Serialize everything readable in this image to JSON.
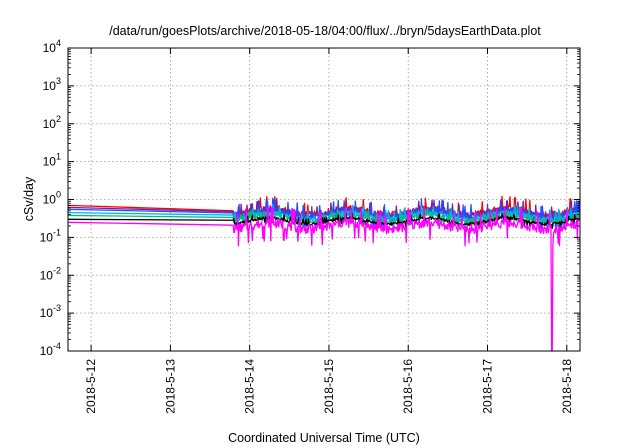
{
  "chart_data": {
    "type": "line",
    "title": "/data/run/goesPlots/archive/2018-05-18/04:00/flux/../bryn/5daysEarthData.plot",
    "xlabel": "Coordinated Universal Time (UTC)",
    "ylabel": "cSv/day",
    "yscale": "log",
    "ylim": [
      0.0001,
      10000
    ],
    "xlim": [
      "2018-05-11T17:00",
      "2018-05-18T04:00"
    ],
    "y_ticks": [
      {
        "value": 0.0001,
        "mantissa": "10",
        "exp": "-4"
      },
      {
        "value": 0.001,
        "mantissa": "10",
        "exp": "-3"
      },
      {
        "value": 0.01,
        "mantissa": "10",
        "exp": "-2"
      },
      {
        "value": 0.1,
        "mantissa": "10",
        "exp": "-1"
      },
      {
        "value": 1,
        "mantissa": "10",
        "exp": "0"
      },
      {
        "value": 10,
        "mantissa": "10",
        "exp": "1"
      },
      {
        "value": 100,
        "mantissa": "10",
        "exp": "2"
      },
      {
        "value": 1000,
        "mantissa": "10",
        "exp": "3"
      },
      {
        "value": 10000,
        "mantissa": "10",
        "exp": "4"
      }
    ],
    "x_ticks": [
      "2018-5-12",
      "2018-5-13",
      "2018-5-14",
      "2018-5-15",
      "2018-5-16",
      "2018-5-17",
      "2018-5-18"
    ],
    "grid": true,
    "legend": "none",
    "gap": {
      "start": "2018-05-11T17:00",
      "end": "2018-05-13T19:00"
    },
    "series": [
      {
        "color": "#ff0000",
        "start": 0.7,
        "level": 0.48,
        "variability": 0.35
      },
      {
        "color": "#7a1fa2",
        "start": 0.62,
        "level": 0.45,
        "variability": 0.3
      },
      {
        "color": "#1f4fff",
        "start": 0.55,
        "level": 0.42,
        "variability": 0.35
      },
      {
        "color": "#00b0e8",
        "start": 0.45,
        "level": 0.37,
        "variability": 0.25
      },
      {
        "color": "#00c080",
        "start": 0.38,
        "level": 0.32,
        "variability": 0.2
      },
      {
        "color": "#000000",
        "start": 0.3,
        "level": 0.27,
        "variability": 0.15
      },
      {
        "color": "#ff00ff",
        "start": 0.25,
        "level": 0.2,
        "variability": 0.5,
        "dropout": {
          "at": "2018-05-17T19:30",
          "value": 0.0001
        }
      }
    ]
  }
}
